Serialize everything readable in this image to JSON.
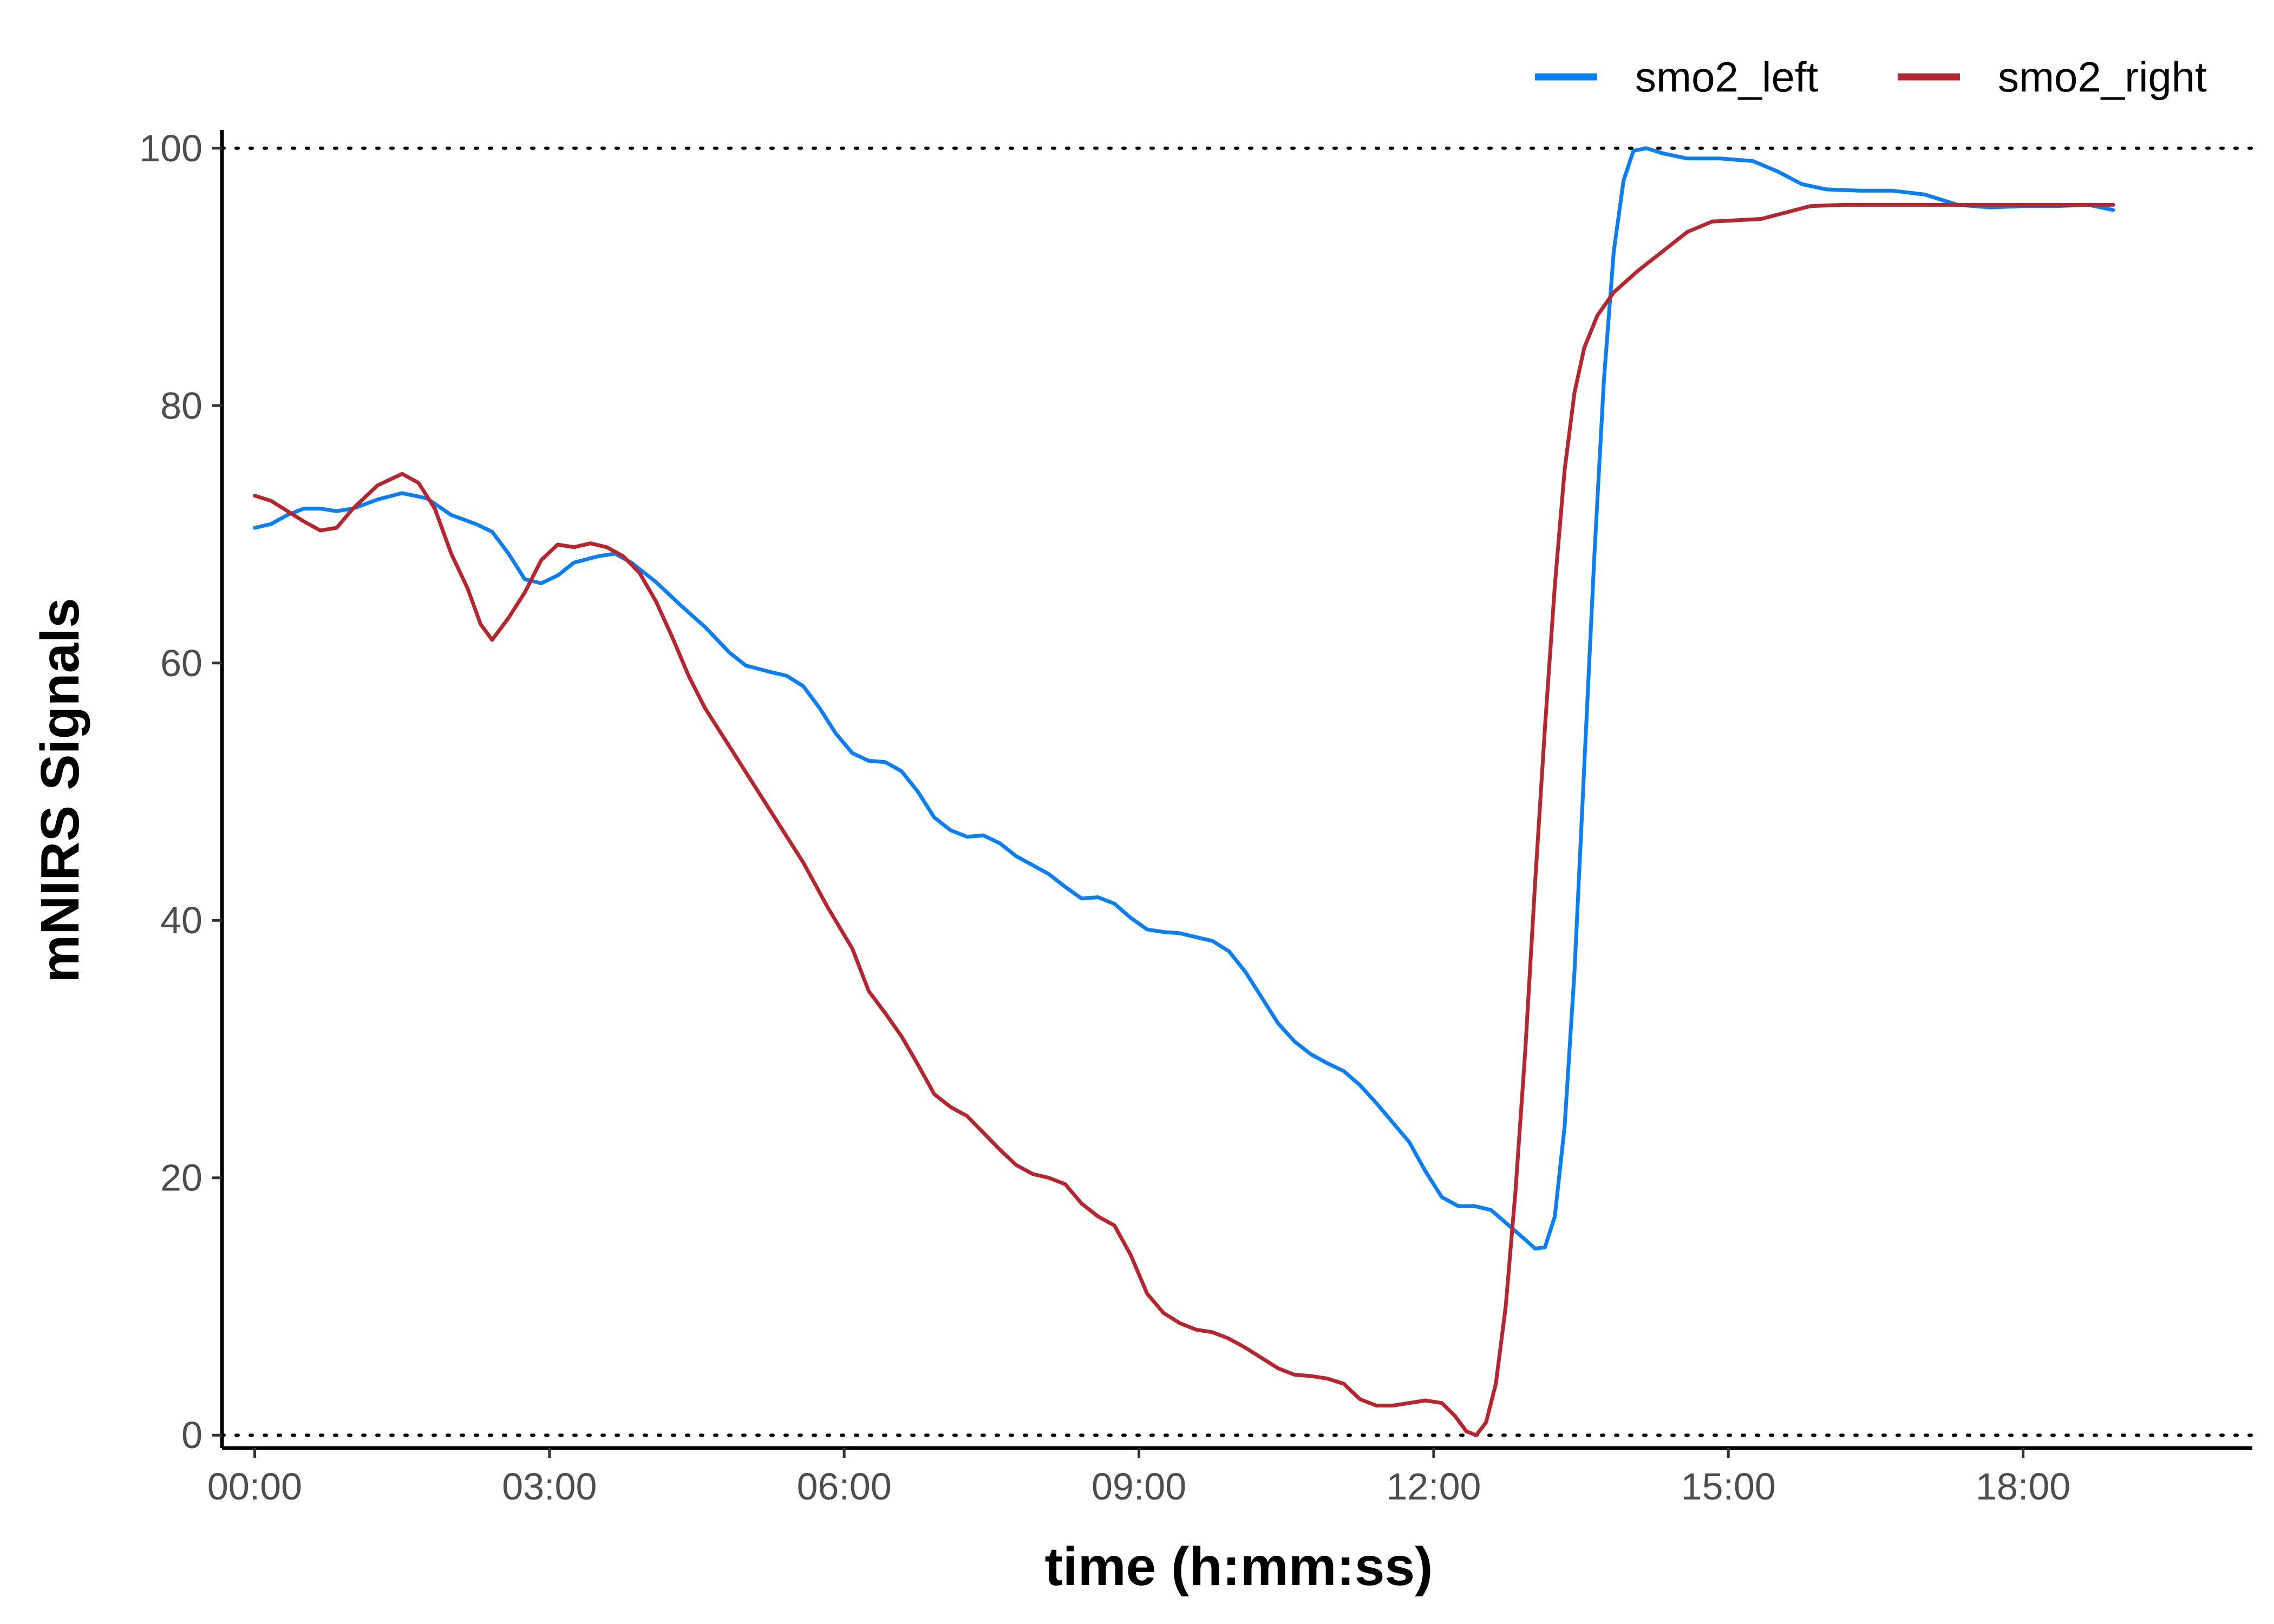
{
  "chart_data": {
    "type": "line",
    "xlabel": "time (h:mm:ss)",
    "ylabel": "mNIRS Signals",
    "x_unit": "seconds",
    "xlim": [
      -20,
      1220
    ],
    "ylim": [
      -1,
      101
    ],
    "x_ticks": [
      0,
      180,
      360,
      540,
      720,
      900,
      1080
    ],
    "x_tick_labels": [
      "00:00",
      "03:00",
      "06:00",
      "09:00",
      "12:00",
      "15:00",
      "18:00"
    ],
    "y_ticks": [
      0,
      20,
      40,
      60,
      80,
      100
    ],
    "y_tick_labels": [
      "0",
      "20",
      "40",
      "60",
      "80",
      "100"
    ],
    "reference_lines": [
      0,
      100
    ],
    "grid": false,
    "legend_position": "top-right",
    "series": [
      {
        "name": "smo2_left",
        "color": "#0a7ff5",
        "points": [
          [
            0,
            70.5
          ],
          [
            10,
            70.8
          ],
          [
            20,
            71.5
          ],
          [
            30,
            72.0
          ],
          [
            40,
            72.0
          ],
          [
            50,
            71.8
          ],
          [
            60,
            72.0
          ],
          [
            75,
            72.7
          ],
          [
            90,
            73.2
          ],
          [
            105,
            72.8
          ],
          [
            120,
            71.5
          ],
          [
            135,
            70.8
          ],
          [
            145,
            70.2
          ],
          [
            155,
            68.5
          ],
          [
            165,
            66.5
          ],
          [
            175,
            66.2
          ],
          [
            185,
            66.8
          ],
          [
            195,
            67.8
          ],
          [
            210,
            68.3
          ],
          [
            220,
            68.5
          ],
          [
            230,
            67.8
          ],
          [
            245,
            66.3
          ],
          [
            260,
            64.5
          ],
          [
            275,
            62.8
          ],
          [
            290,
            60.8
          ],
          [
            300,
            59.8
          ],
          [
            315,
            59.3
          ],
          [
            325,
            59.0
          ],
          [
            335,
            58.2
          ],
          [
            345,
            56.5
          ],
          [
            355,
            54.5
          ],
          [
            365,
            53.0
          ],
          [
            375,
            52.4
          ],
          [
            385,
            52.3
          ],
          [
            395,
            51.6
          ],
          [
            405,
            50.0
          ],
          [
            415,
            48.0
          ],
          [
            425,
            47.0
          ],
          [
            435,
            46.5
          ],
          [
            445,
            46.6
          ],
          [
            455,
            46.0
          ],
          [
            465,
            45.0
          ],
          [
            475,
            44.3
          ],
          [
            485,
            43.6
          ],
          [
            495,
            42.6
          ],
          [
            505,
            41.7
          ],
          [
            515,
            41.8
          ],
          [
            525,
            41.3
          ],
          [
            535,
            40.2
          ],
          [
            545,
            39.3
          ],
          [
            555,
            39.1
          ],
          [
            565,
            39.0
          ],
          [
            575,
            38.7
          ],
          [
            585,
            38.4
          ],
          [
            595,
            37.6
          ],
          [
            605,
            36.0
          ],
          [
            615,
            34.0
          ],
          [
            625,
            32.0
          ],
          [
            635,
            30.6
          ],
          [
            645,
            29.6
          ],
          [
            655,
            28.9
          ],
          [
            665,
            28.3
          ],
          [
            675,
            27.2
          ],
          [
            685,
            25.8
          ],
          [
            695,
            24.3
          ],
          [
            705,
            22.8
          ],
          [
            715,
            20.5
          ],
          [
            725,
            18.5
          ],
          [
            735,
            17.8
          ],
          [
            745,
            17.8
          ],
          [
            755,
            17.5
          ],
          [
            765,
            16.4
          ],
          [
            775,
            15.3
          ],
          [
            782,
            14.5
          ],
          [
            788,
            14.6
          ],
          [
            794,
            17.0
          ],
          [
            800,
            24.0
          ],
          [
            806,
            36.0
          ],
          [
            812,
            52.0
          ],
          [
            818,
            68.0
          ],
          [
            824,
            82.0
          ],
          [
            830,
            92.0
          ],
          [
            836,
            97.5
          ],
          [
            842,
            99.8
          ],
          [
            850,
            100.0
          ],
          [
            860,
            99.6
          ],
          [
            875,
            99.2
          ],
          [
            895,
            99.2
          ],
          [
            915,
            99.0
          ],
          [
            930,
            98.2
          ],
          [
            945,
            97.2
          ],
          [
            960,
            96.8
          ],
          [
            980,
            96.7
          ],
          [
            1000,
            96.7
          ],
          [
            1020,
            96.4
          ],
          [
            1040,
            95.6
          ],
          [
            1060,
            95.4
          ],
          [
            1080,
            95.5
          ],
          [
            1100,
            95.5
          ],
          [
            1120,
            95.6
          ],
          [
            1135,
            95.2
          ]
        ]
      },
      {
        "name": "smo2_right",
        "color": "#b5262e",
        "points": [
          [
            0,
            73.0
          ],
          [
            10,
            72.6
          ],
          [
            20,
            71.8
          ],
          [
            30,
            71.0
          ],
          [
            40,
            70.3
          ],
          [
            50,
            70.5
          ],
          [
            60,
            72.0
          ],
          [
            75,
            73.8
          ],
          [
            90,
            74.7
          ],
          [
            100,
            74.0
          ],
          [
            110,
            72.0
          ],
          [
            120,
            68.5
          ],
          [
            130,
            65.8
          ],
          [
            138,
            63.0
          ],
          [
            145,
            61.8
          ],
          [
            155,
            63.5
          ],
          [
            165,
            65.5
          ],
          [
            175,
            68.0
          ],
          [
            185,
            69.2
          ],
          [
            195,
            69.0
          ],
          [
            205,
            69.3
          ],
          [
            215,
            69.0
          ],
          [
            225,
            68.3
          ],
          [
            235,
            67.0
          ],
          [
            245,
            64.8
          ],
          [
            255,
            62.0
          ],
          [
            265,
            59.0
          ],
          [
            275,
            56.5
          ],
          [
            290,
            53.5
          ],
          [
            305,
            50.5
          ],
          [
            320,
            47.5
          ],
          [
            335,
            44.5
          ],
          [
            350,
            41.0
          ],
          [
            365,
            37.8
          ],
          [
            375,
            34.5
          ],
          [
            385,
            32.8
          ],
          [
            395,
            31.0
          ],
          [
            405,
            28.8
          ],
          [
            415,
            26.5
          ],
          [
            425,
            25.5
          ],
          [
            435,
            24.8
          ],
          [
            445,
            23.5
          ],
          [
            455,
            22.2
          ],
          [
            465,
            21.0
          ],
          [
            475,
            20.3
          ],
          [
            485,
            20.0
          ],
          [
            495,
            19.5
          ],
          [
            505,
            18.0
          ],
          [
            515,
            17.0
          ],
          [
            525,
            16.3
          ],
          [
            535,
            14.0
          ],
          [
            545,
            11.0
          ],
          [
            555,
            9.5
          ],
          [
            565,
            8.7
          ],
          [
            575,
            8.2
          ],
          [
            585,
            8.0
          ],
          [
            595,
            7.5
          ],
          [
            605,
            6.8
          ],
          [
            615,
            6.0
          ],
          [
            625,
            5.2
          ],
          [
            635,
            4.7
          ],
          [
            645,
            4.6
          ],
          [
            655,
            4.4
          ],
          [
            665,
            4.0
          ],
          [
            675,
            2.8
          ],
          [
            685,
            2.3
          ],
          [
            695,
            2.3
          ],
          [
            705,
            2.5
          ],
          [
            715,
            2.7
          ],
          [
            725,
            2.5
          ],
          [
            733,
            1.5
          ],
          [
            740,
            0.3
          ],
          [
            746,
            0.0
          ],
          [
            752,
            1.0
          ],
          [
            758,
            4.0
          ],
          [
            764,
            10.0
          ],
          [
            770,
            19.0
          ],
          [
            776,
            30.0
          ],
          [
            782,
            43.0
          ],
          [
            788,
            55.0
          ],
          [
            794,
            66.0
          ],
          [
            800,
            75.0
          ],
          [
            806,
            81.0
          ],
          [
            812,
            84.5
          ],
          [
            820,
            87.0
          ],
          [
            830,
            88.8
          ],
          [
            845,
            90.5
          ],
          [
            860,
            92.0
          ],
          [
            875,
            93.5
          ],
          [
            890,
            94.3
          ],
          [
            905,
            94.4
          ],
          [
            920,
            94.5
          ],
          [
            935,
            95.0
          ],
          [
            950,
            95.5
          ],
          [
            970,
            95.6
          ],
          [
            1000,
            95.6
          ],
          [
            1050,
            95.6
          ],
          [
            1100,
            95.6
          ],
          [
            1135,
            95.6
          ]
        ]
      }
    ]
  }
}
